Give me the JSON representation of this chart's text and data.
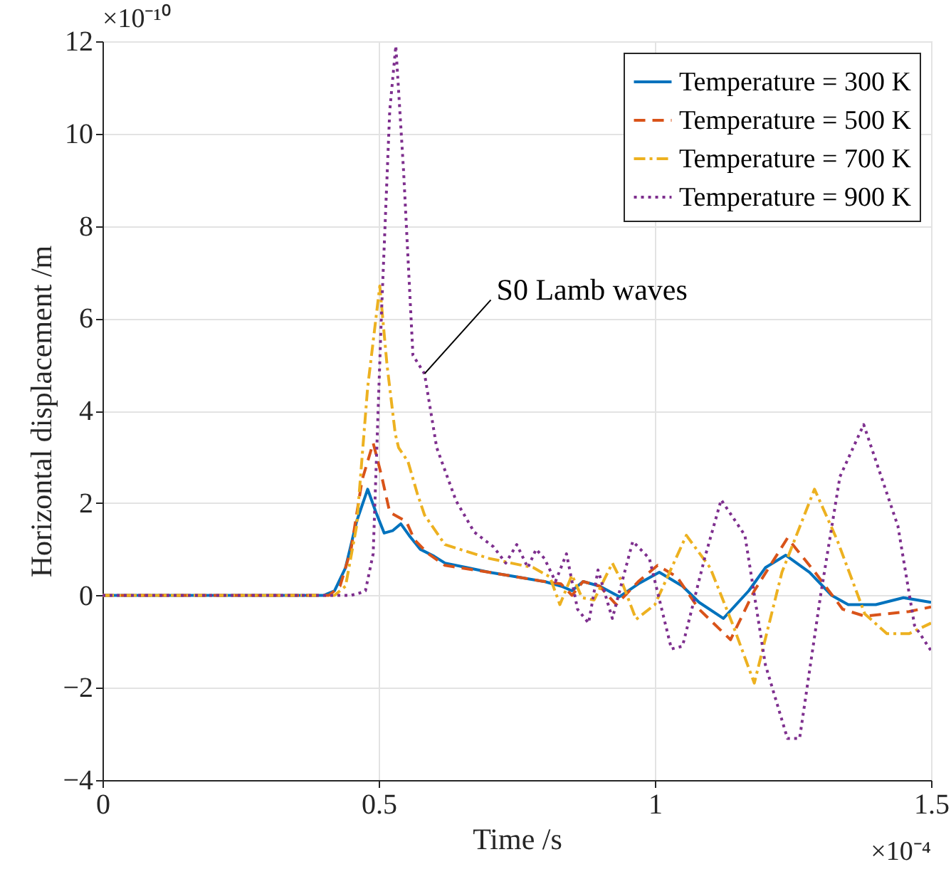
{
  "chart_data": {
    "type": "line",
    "xlabel": "Time /s",
    "ylabel": "Horizontal displacement /m",
    "xlim": [
      0,
      1.5
    ],
    "ylim": [
      -4,
      12
    ],
    "xticks": [
      0,
      0.5,
      1,
      1.5
    ],
    "yticks": [
      -4,
      -2,
      0,
      2,
      4,
      6,
      8,
      10,
      12
    ],
    "grid": true,
    "legend": "top right",
    "series": [
      {
        "name": "Temperature = 300 K",
        "color": "#0072bd",
        "line_style": "solid",
        "x": [
          0,
          0.4,
          0.42,
          0.44,
          0.46,
          0.48,
          0.495,
          0.51,
          0.525,
          0.54,
          0.555,
          0.575,
          0.6,
          0.62,
          0.66,
          0.7,
          0.75,
          0.8,
          0.83,
          0.85,
          0.87,
          0.9,
          0.936,
          0.97,
          1.008,
          1.05,
          1.08,
          1.124,
          1.17,
          1.2,
          1.237,
          1.28,
          1.32,
          1.35,
          1.4,
          1.45,
          1.5
        ],
        "values": [
          0,
          0,
          0.1,
          0.6,
          1.6,
          2.3,
          1.8,
          1.35,
          1.4,
          1.55,
          1.3,
          1.0,
          0.85,
          0.7,
          0.6,
          0.5,
          0.4,
          0.3,
          0.2,
          0.1,
          0.3,
          0.2,
          -0.03,
          0.25,
          0.5,
          0.2,
          -0.15,
          -0.5,
          0.1,
          0.6,
          0.87,
          0.5,
          0.0,
          -0.2,
          -0.2,
          -0.05,
          -0.15
        ]
      },
      {
        "name": "Temperature = 500 K",
        "color": "#d95319",
        "line_style": "dashed",
        "x": [
          0,
          0.41,
          0.43,
          0.45,
          0.47,
          0.49,
          0.505,
          0.52,
          0.535,
          0.55,
          0.565,
          0.59,
          0.62,
          0.7,
          0.8,
          0.83,
          0.85,
          0.87,
          0.9,
          0.93,
          0.97,
          1.005,
          1.04,
          1.08,
          1.137,
          1.18,
          1.24,
          1.29,
          1.34,
          1.38,
          1.42,
          1.46,
          1.5
        ],
        "values": [
          0,
          0,
          0.2,
          1.0,
          2.5,
          3.3,
          2.6,
          1.8,
          1.7,
          1.6,
          1.2,
          0.9,
          0.65,
          0.5,
          0.3,
          0.25,
          0.0,
          0.3,
          0.2,
          -0.2,
          0.3,
          0.65,
          0.4,
          -0.3,
          -0.96,
          0.1,
          1.24,
          0.5,
          -0.3,
          -0.45,
          -0.4,
          -0.35,
          -0.25
        ]
      },
      {
        "name": "Temperature = 700 K",
        "color": "#edb120",
        "line_style": "dashdot",
        "x": [
          0,
          0.42,
          0.44,
          0.46,
          0.48,
          0.502,
          0.515,
          0.53,
          0.536,
          0.553,
          0.57,
          0.583,
          0.62,
          0.7,
          0.78,
          0.81,
          0.828,
          0.85,
          0.868,
          0.89,
          0.923,
          0.94,
          0.966,
          1.0,
          1.057,
          1.1,
          1.14,
          1.18,
          1.23,
          1.289,
          1.33,
          1.38,
          1.42,
          1.46,
          1.5
        ],
        "values": [
          0,
          0,
          0.2,
          1.5,
          4.5,
          6.7,
          5.0,
          3.5,
          3.2,
          2.9,
          2.2,
          1.74,
          1.1,
          0.8,
          0.6,
          0.4,
          -0.2,
          0.44,
          -0.05,
          -0.1,
          0.7,
          0.3,
          -0.52,
          -0.2,
          1.3,
          0.6,
          -0.6,
          -1.9,
          0.5,
          2.3,
          1.2,
          -0.4,
          -0.83,
          -0.83,
          -0.6
        ]
      },
      {
        "name": "Temperature = 900 K",
        "color": "#7e2f8e",
        "line_style": "dotted",
        "x": [
          0,
          0.45,
          0.465,
          0.476,
          0.49,
          0.505,
          0.52,
          0.531,
          0.545,
          0.562,
          0.583,
          0.605,
          0.64,
          0.673,
          0.708,
          0.73,
          0.75,
          0.77,
          0.785,
          0.8,
          0.82,
          0.84,
          0.86,
          0.88,
          0.897,
          0.923,
          0.96,
          0.99,
          1.03,
          1.05,
          1.09,
          1.12,
          1.163,
          1.2,
          1.24,
          1.262,
          1.3,
          1.335,
          1.378,
          1.44,
          1.47,
          1.5
        ],
        "values": [
          0,
          0,
          0.05,
          0.1,
          0.9,
          6.1,
          10.5,
          11.9,
          9.2,
          5.2,
          4.8,
          3.2,
          2.05,
          1.37,
          1.05,
          0.7,
          1.1,
          0.6,
          1.0,
          0.8,
          0.3,
          0.9,
          -0.3,
          -0.6,
          0.55,
          -0.5,
          1.17,
          0.8,
          -1.16,
          -1.1,
          0.8,
          2.07,
          1.3,
          -1.5,
          -3.1,
          -3.1,
          0.0,
          2.57,
          3.7,
          1.5,
          -0.65,
          -1.2
        ]
      }
    ],
    "annotations": [
      {
        "text": "S0 Lamb waves",
        "x": 0.583,
        "y": 4.8
      },
      "×10⁻¹⁰",
      "×10⁻⁴"
    ]
  }
}
